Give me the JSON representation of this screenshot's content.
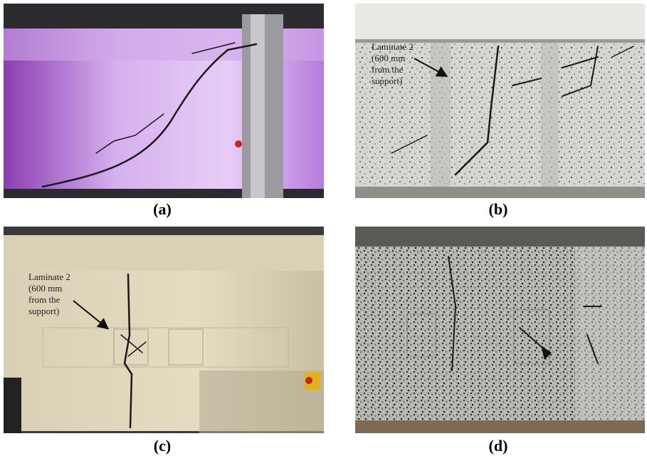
{
  "panels": [
    {
      "label": "(a)"
    },
    {
      "label": "(b)",
      "annotation": [
        "Laminate 2",
        "(600 mm",
        "from the",
        "support)"
      ]
    },
    {
      "label": "(c)",
      "annotation": [
        "Laminate 2",
        "(600 mm",
        "from the",
        "support)"
      ]
    },
    {
      "label": "(d)"
    }
  ]
}
